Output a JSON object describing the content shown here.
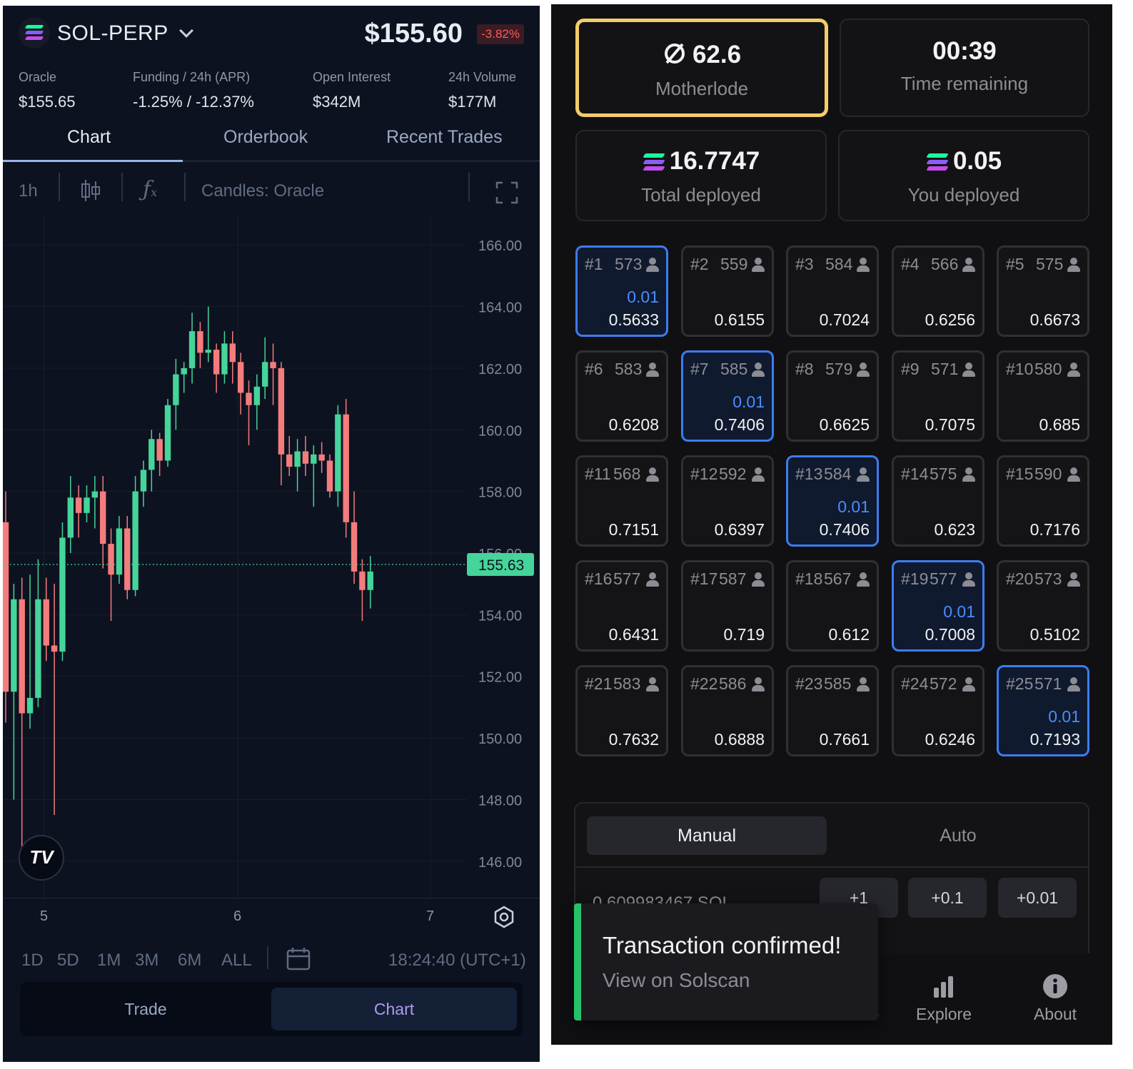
{
  "market": {
    "symbol": "SOL-PERP",
    "price": "$155.60",
    "change": "-3.82%",
    "stats": [
      {
        "label": "Oracle",
        "value": "$155.65"
      },
      {
        "label": "Funding / 24h (APR)",
        "value": "-1.25% / -12.37%"
      },
      {
        "label": "Open Interest",
        "value": "$342M"
      },
      {
        "label": "24h Volume",
        "value": "$177M"
      }
    ],
    "tabs": [
      "Chart",
      "Orderbook",
      "Recent Trades"
    ],
    "active_tab": "Chart"
  },
  "chart_toolbar": {
    "interval": "1h",
    "candles_label": "Candles: Oracle"
  },
  "chart_data": {
    "type": "candlestick",
    "y_ticks": [
      "166.00",
      "164.00",
      "162.00",
      "160.00",
      "158.00",
      "156.00",
      "154.00",
      "152.00",
      "150.00",
      "148.00",
      "146.00"
    ],
    "x_ticks": [
      "5",
      "6",
      "7"
    ],
    "ylim": [
      145,
      167
    ],
    "last_price": "155.63",
    "colors": {
      "up": "#45d49a",
      "down": "#f47c7c"
    },
    "candles": [
      [
        157.0,
        158.0,
        150.5,
        151.5
      ],
      [
        151.5,
        155.0,
        148.0,
        154.5
      ],
      [
        154.5,
        155.2,
        146.0,
        150.8
      ],
      [
        150.8,
        155.3,
        150.3,
        151.3
      ],
      [
        151.3,
        155.8,
        151.0,
        154.5
      ],
      [
        154.5,
        155.2,
        152.5,
        153.0
      ],
      [
        153.0,
        155.0,
        147.5,
        152.8
      ],
      [
        152.8,
        157.0,
        152.5,
        156.5
      ],
      [
        156.5,
        158.5,
        156.0,
        157.8
      ],
      [
        157.8,
        158.2,
        156.5,
        157.3
      ],
      [
        157.3,
        158.2,
        157.0,
        157.8
      ],
      [
        157.8,
        158.5,
        156.8,
        158.0
      ],
      [
        158.0,
        158.5,
        155.5,
        156.3
      ],
      [
        156.3,
        156.8,
        153.8,
        155.3
      ],
      [
        155.3,
        157.2,
        155.0,
        156.8
      ],
      [
        156.8,
        157.2,
        154.5,
        154.8
      ],
      [
        154.8,
        158.5,
        154.6,
        158.0
      ],
      [
        158.0,
        159.0,
        157.5,
        158.7
      ],
      [
        158.7,
        160.0,
        158.0,
        159.7
      ],
      [
        159.7,
        159.9,
        158.5,
        159.0
      ],
      [
        159.0,
        161.0,
        158.8,
        160.8
      ],
      [
        160.8,
        162.3,
        160.0,
        161.8
      ],
      [
        161.8,
        162.2,
        161.2,
        162.0
      ],
      [
        162.0,
        163.8,
        161.5,
        163.2
      ],
      [
        163.2,
        163.5,
        162.0,
        162.5
      ],
      [
        162.5,
        164.0,
        162.2,
        162.6
      ],
      [
        162.6,
        162.8,
        161.2,
        161.8
      ],
      [
        161.8,
        163.2,
        161.5,
        162.8
      ],
      [
        162.8,
        163.2,
        161.5,
        162.2
      ],
      [
        162.2,
        162.5,
        160.5,
        161.2
      ],
      [
        161.2,
        161.6,
        159.5,
        160.8
      ],
      [
        160.8,
        161.8,
        160.0,
        161.4
      ],
      [
        161.4,
        163.0,
        161.0,
        162.2
      ],
      [
        162.2,
        162.8,
        160.8,
        162.0
      ],
      [
        162.0,
        162.2,
        158.2,
        159.2
      ],
      [
        159.2,
        159.8,
        158.5,
        158.8
      ],
      [
        158.8,
        159.7,
        158.0,
        159.3
      ],
      [
        159.3,
        159.8,
        158.5,
        158.9
      ],
      [
        158.9,
        159.5,
        157.5,
        159.2
      ],
      [
        159.2,
        159.6,
        158.6,
        159.0
      ],
      [
        159.0,
        159.2,
        157.8,
        158.0
      ],
      [
        158.0,
        160.8,
        157.5,
        160.5
      ],
      [
        160.5,
        161.0,
        156.5,
        157.0
      ],
      [
        157.0,
        158.0,
        155.0,
        155.4
      ],
      [
        155.4,
        155.8,
        153.8,
        154.8
      ],
      [
        154.8,
        155.9,
        154.2,
        155.4
      ]
    ]
  },
  "date_ranges": [
    "1D",
    "5D",
    "1M",
    "3M",
    "6M",
    "ALL"
  ],
  "chart_time": "18:24:40 (UTC+1)",
  "bottom_tabs": [
    "Trade",
    "Chart"
  ],
  "mining": {
    "motherlode": {
      "value": "62.6",
      "label": "Motherlode"
    },
    "time": {
      "value": "00:39",
      "label": "Time remaining"
    },
    "total": {
      "value": "16.7747",
      "label": "Total deployed"
    },
    "you": {
      "value": "0.05",
      "label": "You deployed"
    }
  },
  "blocks": [
    {
      "id": "#1",
      "count": "573",
      "dep": "0.01",
      "val": "0.5633"
    },
    {
      "id": "#2",
      "count": "559",
      "dep": "",
      "val": "0.6155"
    },
    {
      "id": "#3",
      "count": "584",
      "dep": "",
      "val": "0.7024"
    },
    {
      "id": "#4",
      "count": "566",
      "dep": "",
      "val": "0.6256"
    },
    {
      "id": "#5",
      "count": "575",
      "dep": "",
      "val": "0.6673"
    },
    {
      "id": "#6",
      "count": "583",
      "dep": "",
      "val": "0.6208"
    },
    {
      "id": "#7",
      "count": "585",
      "dep": "0.01",
      "val": "0.7406"
    },
    {
      "id": "#8",
      "count": "579",
      "dep": "",
      "val": "0.6625"
    },
    {
      "id": "#9",
      "count": "571",
      "dep": "",
      "val": "0.7075"
    },
    {
      "id": "#10",
      "count": "580",
      "dep": "",
      "val": "0.685"
    },
    {
      "id": "#11",
      "count": "568",
      "dep": "",
      "val": "0.7151"
    },
    {
      "id": "#12",
      "count": "592",
      "dep": "",
      "val": "0.6397"
    },
    {
      "id": "#13",
      "count": "584",
      "dep": "0.01",
      "val": "0.7406"
    },
    {
      "id": "#14",
      "count": "575",
      "dep": "",
      "val": "0.623"
    },
    {
      "id": "#15",
      "count": "590",
      "dep": "",
      "val": "0.7176"
    },
    {
      "id": "#16",
      "count": "577",
      "dep": "",
      "val": "0.6431"
    },
    {
      "id": "#17",
      "count": "587",
      "dep": "",
      "val": "0.719"
    },
    {
      "id": "#18",
      "count": "567",
      "dep": "",
      "val": "0.612"
    },
    {
      "id": "#19",
      "count": "577",
      "dep": "0.01",
      "val": "0.7008"
    },
    {
      "id": "#20",
      "count": "573",
      "dep": "",
      "val": "0.5102"
    },
    {
      "id": "#21",
      "count": "583",
      "dep": "",
      "val": "0.7632"
    },
    {
      "id": "#22",
      "count": "586",
      "dep": "",
      "val": "0.6888"
    },
    {
      "id": "#23",
      "count": "585",
      "dep": "",
      "val": "0.7661"
    },
    {
      "id": "#24",
      "count": "572",
      "dep": "",
      "val": "0.6246"
    },
    {
      "id": "#25",
      "count": "571",
      "dep": "0.01",
      "val": "0.7193"
    }
  ],
  "mode": {
    "manual": "Manual",
    "auto": "Auto"
  },
  "amount": "0.609983467 SOL",
  "increments": [
    "+1",
    "+0.1",
    "+0.01"
  ],
  "toast": {
    "title": "Transaction confirmed!",
    "link": "View on Solscan"
  },
  "nav": [
    {
      "label": "Explore",
      "icon": "bar-chart-icon"
    },
    {
      "label": "About",
      "icon": "info-icon"
    }
  ]
}
